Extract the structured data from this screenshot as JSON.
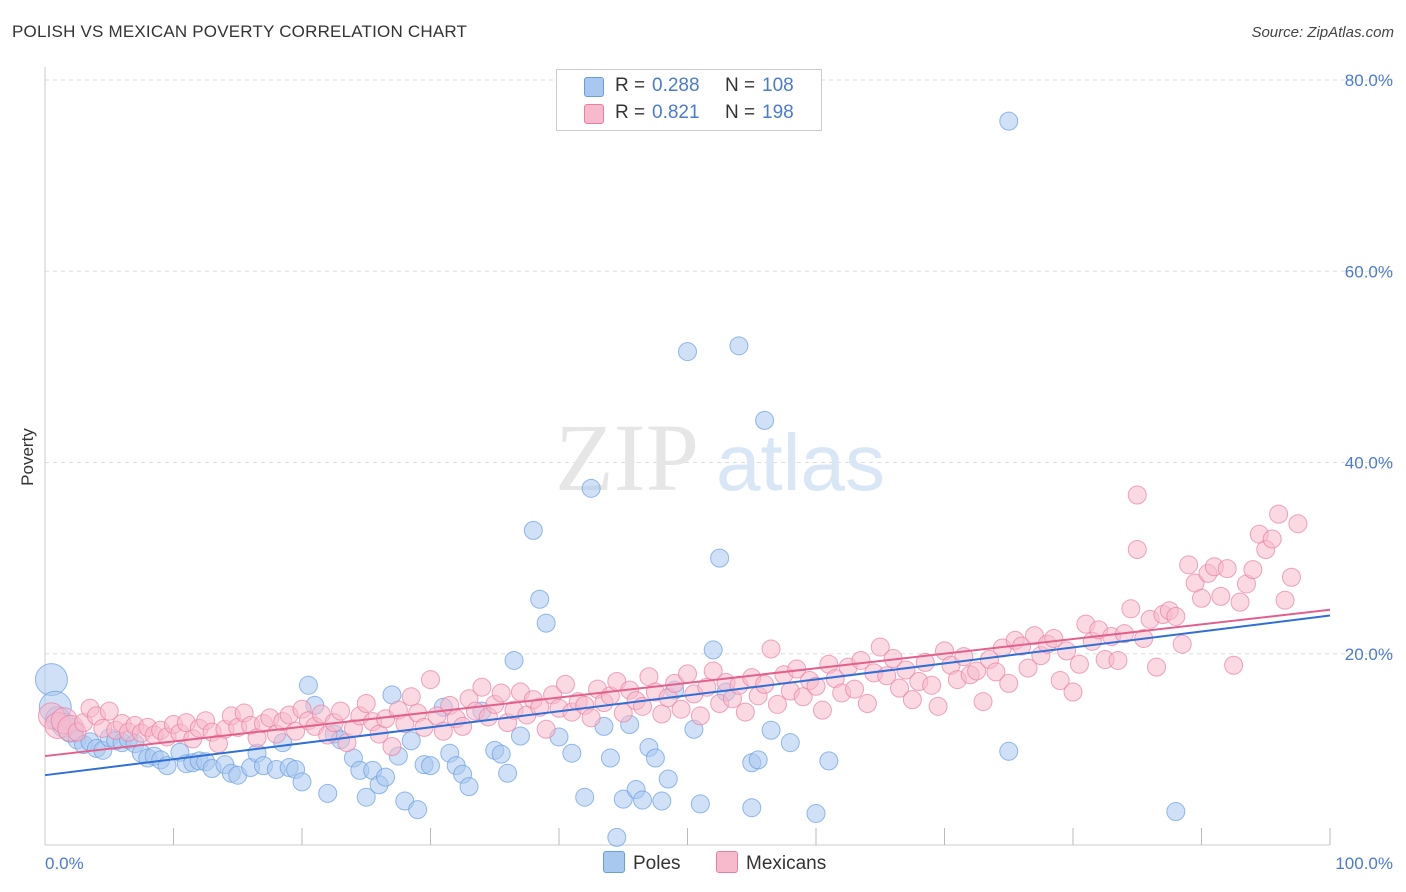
{
  "header": {
    "title": "POLISH VS MEXICAN POVERTY CORRELATION CHART",
    "source": "Source: ZipAtlas.com"
  },
  "watermark": {
    "zip": "ZIP",
    "atlas": "atlas"
  },
  "legend_stats": [
    {
      "r_label": "R =",
      "r_value": "0.288",
      "n_label": "N =",
      "n_value": "108",
      "color": "#a9c8f0"
    },
    {
      "r_label": "R =",
      "r_value": "0.821",
      "n_label": "N =",
      "n_value": "198",
      "color": "#f7b9cc"
    }
  ],
  "bottom_legend": [
    {
      "label": "Poles",
      "color": "#a9c8f0"
    },
    {
      "label": "Mexicans",
      "color": "#f7b9cc"
    }
  ],
  "chart_data": {
    "type": "scatter",
    "title": "POLISH VS MEXICAN POVERTY CORRELATION CHART",
    "xlabel": "",
    "ylabel": "Poverty",
    "xlim": [
      0,
      100
    ],
    "ylim": [
      0,
      80
    ],
    "x_tick_labels": [
      "0.0%",
      "100.0%"
    ],
    "y_tick_labels": [
      "20.0%",
      "40.0%",
      "60.0%",
      "80.0%"
    ],
    "y_ticks": [
      20,
      40,
      60,
      80
    ],
    "grid": true,
    "legend_position": "top-center",
    "series": [
      {
        "name": "Poles",
        "color": "#6a9ce0",
        "fill": "#a9c8f0",
        "trend": {
          "x": [
            0,
            100
          ],
          "y": [
            7.3,
            24.0
          ]
        },
        "points": [
          [
            0.5,
            17.3
          ],
          [
            0.8,
            14.4
          ],
          [
            1.0,
            13.2
          ],
          [
            1.5,
            12.5
          ],
          [
            2,
            12
          ],
          [
            2.5,
            11
          ],
          [
            3,
            10.5
          ],
          [
            3.5,
            10.8
          ],
          [
            4,
            10.1
          ],
          [
            4.5,
            9.9
          ],
          [
            5,
            11.2
          ],
          [
            5.5,
            10.9
          ],
          [
            6,
            10.7
          ],
          [
            6.5,
            11.0
          ],
          [
            7,
            10.6
          ],
          [
            7.5,
            9.6
          ],
          [
            8,
            9.1
          ],
          [
            8.5,
            9.3
          ],
          [
            9,
            8.9
          ],
          [
            9.5,
            8.3
          ],
          [
            10.5,
            9.7
          ],
          [
            11,
            8.5
          ],
          [
            11.5,
            8.6
          ],
          [
            12,
            8.8
          ],
          [
            12.5,
            8.7
          ],
          [
            13,
            8.0
          ],
          [
            14,
            8.4
          ],
          [
            14.5,
            7.5
          ],
          [
            15,
            7.3
          ],
          [
            16,
            8.1
          ],
          [
            16.5,
            9.6
          ],
          [
            17,
            8.3
          ],
          [
            18,
            7.9
          ],
          [
            18.5,
            10.7
          ],
          [
            19,
            8.1
          ],
          [
            19.5,
            7.9
          ],
          [
            20,
            6.6
          ],
          [
            20.5,
            16.7
          ],
          [
            21,
            14.6
          ],
          [
            22,
            5.4
          ],
          [
            22.5,
            11.6
          ],
          [
            23,
            11.0
          ],
          [
            24,
            9.1
          ],
          [
            24.5,
            7.8
          ],
          [
            25,
            5.0
          ],
          [
            25.5,
            7.8
          ],
          [
            26,
            6.3
          ],
          [
            26.5,
            7.1
          ],
          [
            27,
            15.7
          ],
          [
            27.5,
            9.3
          ],
          [
            28,
            4.6
          ],
          [
            28.5,
            10.9
          ],
          [
            29,
            3.7
          ],
          [
            29.5,
            8.4
          ],
          [
            30,
            8.3
          ],
          [
            31,
            14.4
          ],
          [
            31.5,
            9.6
          ],
          [
            32,
            8.3
          ],
          [
            32.5,
            7.4
          ],
          [
            33,
            6.1
          ],
          [
            34,
            14.0
          ],
          [
            35,
            9.9
          ],
          [
            35.5,
            9.5
          ],
          [
            36,
            7.5
          ],
          [
            36.5,
            19.3
          ],
          [
            37,
            11.4
          ],
          [
            38,
            32.9
          ],
          [
            38.5,
            25.7
          ],
          [
            39,
            23.2
          ],
          [
            40,
            11.3
          ],
          [
            41,
            9.6
          ],
          [
            42,
            5.0
          ],
          [
            42.5,
            37.3
          ],
          [
            43.5,
            12.4
          ],
          [
            44,
            9.1
          ],
          [
            44.5,
            0.8
          ],
          [
            45,
            4.8
          ],
          [
            45.5,
            12.6
          ],
          [
            46,
            5.8
          ],
          [
            46.5,
            4.7
          ],
          [
            47,
            10.2
          ],
          [
            47.5,
            9.1
          ],
          [
            48,
            4.6
          ],
          [
            48.5,
            6.9
          ],
          [
            49,
            16.2
          ],
          [
            50,
            51.6
          ],
          [
            50.5,
            12.1
          ],
          [
            51,
            4.3
          ],
          [
            52,
            20.4
          ],
          [
            52.5,
            30.0
          ],
          [
            53,
            16.0
          ],
          [
            54,
            52.2
          ],
          [
            55,
            8.6
          ],
          [
            55.5,
            8.9
          ],
          [
            55,
            3.9
          ],
          [
            56,
            44.4
          ],
          [
            56.5,
            12.0
          ],
          [
            58,
            10.7
          ],
          [
            60,
            3.3
          ],
          [
            61,
            8.8
          ],
          [
            75,
            75.7
          ],
          [
            75,
            9.8
          ],
          [
            88,
            3.5
          ]
        ]
      },
      {
        "name": "Mexicans",
        "color": "#e87fa3",
        "fill": "#f7b9cc",
        "trend": {
          "x": [
            0,
            100
          ],
          "y": [
            9.3,
            24.6
          ]
        },
        "points": [
          [
            0.5,
            13.5
          ],
          [
            1,
            12.5
          ],
          [
            1.5,
            13.0
          ],
          [
            2,
            12.2
          ],
          [
            2.5,
            11.8
          ],
          [
            3,
            12.8
          ],
          [
            3.5,
            14.3
          ],
          [
            4,
            13.5
          ],
          [
            4.5,
            12.2
          ],
          [
            5,
            14.0
          ],
          [
            5.5,
            12.0
          ],
          [
            6,
            12.7
          ],
          [
            6.5,
            11.8
          ],
          [
            7,
            12.5
          ],
          [
            7.5,
            11.7
          ],
          [
            8,
            12.3
          ],
          [
            8.5,
            11.5
          ],
          [
            9,
            12.0
          ],
          [
            9.5,
            11.3
          ],
          [
            10,
            12.6
          ],
          [
            10.5,
            11.7
          ],
          [
            11,
            12.8
          ],
          [
            11.5,
            11.1
          ],
          [
            12,
            12.2
          ],
          [
            12.5,
            13.0
          ],
          [
            13,
            11.8
          ],
          [
            13.5,
            10.6
          ],
          [
            14,
            12.1
          ],
          [
            14.5,
            13.5
          ],
          [
            15,
            12.3
          ],
          [
            15.5,
            13.8
          ],
          [
            16,
            12.5
          ],
          [
            16.5,
            11.2
          ],
          [
            17,
            12.7
          ],
          [
            17.5,
            13.3
          ],
          [
            18,
            11.6
          ],
          [
            18.5,
            12.9
          ],
          [
            19,
            13.6
          ],
          [
            19.5,
            11.9
          ],
          [
            20,
            14.2
          ],
          [
            20.5,
            13.0
          ],
          [
            21,
            12.4
          ],
          [
            21.5,
            13.7
          ],
          [
            22,
            11.5
          ],
          [
            22.5,
            12.8
          ],
          [
            23,
            14.0
          ],
          [
            23.5,
            10.7
          ],
          [
            24,
            12.2
          ],
          [
            24.5,
            13.5
          ],
          [
            25,
            14.8
          ],
          [
            25.5,
            12.9
          ],
          [
            26,
            11.6
          ],
          [
            26.5,
            13.2
          ],
          [
            27,
            10.3
          ],
          [
            27.5,
            14.1
          ],
          [
            28,
            12.7
          ],
          [
            28.5,
            15.5
          ],
          [
            29,
            13.8
          ],
          [
            29.5,
            12.3
          ],
          [
            30,
            17.3
          ],
          [
            30.5,
            13.5
          ],
          [
            31,
            11.9
          ],
          [
            31.5,
            14.6
          ],
          [
            32,
            13.2
          ],
          [
            32.5,
            12.4
          ],
          [
            33,
            15.3
          ],
          [
            33.5,
            14.0
          ],
          [
            34,
            16.5
          ],
          [
            34.5,
            13.4
          ],
          [
            35,
            14.7
          ],
          [
            35.5,
            15.9
          ],
          [
            36,
            12.8
          ],
          [
            36.5,
            14.1
          ],
          [
            37,
            16.0
          ],
          [
            37.5,
            13.6
          ],
          [
            38,
            15.2
          ],
          [
            38.5,
            14.4
          ],
          [
            39,
            12.1
          ],
          [
            39.5,
            15.7
          ],
          [
            40,
            14.3
          ],
          [
            40.5,
            16.8
          ],
          [
            41,
            13.9
          ],
          [
            41.5,
            15.0
          ],
          [
            42,
            14.6
          ],
          [
            42.5,
            13.3
          ],
          [
            43,
            16.3
          ],
          [
            43.5,
            14.9
          ],
          [
            44,
            15.6
          ],
          [
            44.5,
            17.1
          ],
          [
            45,
            13.8
          ],
          [
            45.5,
            16.2
          ],
          [
            46,
            15.1
          ],
          [
            46.5,
            14.5
          ],
          [
            47,
            17.6
          ],
          [
            47.5,
            16.0
          ],
          [
            48,
            13.7
          ],
          [
            48.5,
            15.4
          ],
          [
            49,
            16.9
          ],
          [
            49.5,
            14.2
          ],
          [
            50,
            17.9
          ],
          [
            50.5,
            15.8
          ],
          [
            51,
            13.5
          ],
          [
            51.5,
            16.5
          ],
          [
            52,
            18.2
          ],
          [
            52.5,
            14.8
          ],
          [
            53,
            17.0
          ],
          [
            53.5,
            15.3
          ],
          [
            54,
            16.7
          ],
          [
            54.5,
            13.9
          ],
          [
            55,
            17.5
          ],
          [
            55.5,
            15.6
          ],
          [
            56,
            16.8
          ],
          [
            56.5,
            20.5
          ],
          [
            57,
            14.7
          ],
          [
            57.5,
            17.8
          ],
          [
            58,
            16.1
          ],
          [
            58.5,
            18.4
          ],
          [
            59,
            15.5
          ],
          [
            59.5,
            17.2
          ],
          [
            60,
            16.6
          ],
          [
            60.5,
            14.1
          ],
          [
            61,
            18.9
          ],
          [
            61.5,
            17.4
          ],
          [
            62,
            15.9
          ],
          [
            62.5,
            18.6
          ],
          [
            63,
            16.3
          ],
          [
            63.5,
            19.3
          ],
          [
            64,
            14.8
          ],
          [
            64.5,
            18.0
          ],
          [
            65,
            20.7
          ],
          [
            65.5,
            17.7
          ],
          [
            66,
            19.5
          ],
          [
            66.5,
            16.4
          ],
          [
            67,
            18.3
          ],
          [
            67.5,
            15.2
          ],
          [
            68,
            17.1
          ],
          [
            68.5,
            19.1
          ],
          [
            69,
            16.7
          ],
          [
            69.5,
            14.5
          ],
          [
            70,
            20.3
          ],
          [
            70.5,
            18.8
          ],
          [
            71,
            17.3
          ],
          [
            71.5,
            19.7
          ],
          [
            72,
            17.8
          ],
          [
            72.5,
            18.2
          ],
          [
            73,
            15.0
          ],
          [
            73.5,
            19.4
          ],
          [
            74,
            18.1
          ],
          [
            74.5,
            20.6
          ],
          [
            75,
            16.9
          ],
          [
            75.5,
            21.4
          ],
          [
            76,
            20.8
          ],
          [
            76.5,
            18.5
          ],
          [
            77,
            21.9
          ],
          [
            77.5,
            19.8
          ],
          [
            78,
            21.0
          ],
          [
            78.5,
            21.6
          ],
          [
            79,
            17.2
          ],
          [
            79.5,
            20.3
          ],
          [
            80,
            16.0
          ],
          [
            80.5,
            18.9
          ],
          [
            81,
            23.1
          ],
          [
            81.5,
            21.3
          ],
          [
            82,
            22.5
          ],
          [
            82.5,
            19.4
          ],
          [
            83,
            21.8
          ],
          [
            83.5,
            19.3
          ],
          [
            84,
            22.1
          ],
          [
            84.5,
            24.7
          ],
          [
            85,
            30.9
          ],
          [
            85,
            36.6
          ],
          [
            85.5,
            21.6
          ],
          [
            86,
            23.6
          ],
          [
            86.5,
            18.6
          ],
          [
            87,
            24.1
          ],
          [
            87.5,
            24.5
          ],
          [
            88,
            23.9
          ],
          [
            88.5,
            21.0
          ],
          [
            89,
            29.3
          ],
          [
            89.5,
            27.4
          ],
          [
            90,
            25.8
          ],
          [
            90.5,
            28.4
          ],
          [
            91,
            29.1
          ],
          [
            91.5,
            26.0
          ],
          [
            92,
            28.9
          ],
          [
            92.5,
            18.8
          ],
          [
            93,
            25.4
          ],
          [
            93.5,
            27.3
          ],
          [
            94,
            28.8
          ],
          [
            94.5,
            32.5
          ],
          [
            95,
            30.9
          ],
          [
            95.5,
            32.0
          ],
          [
            96,
            34.6
          ],
          [
            96.5,
            25.6
          ],
          [
            97,
            28.0
          ],
          [
            97.5,
            33.6
          ]
        ]
      }
    ]
  }
}
